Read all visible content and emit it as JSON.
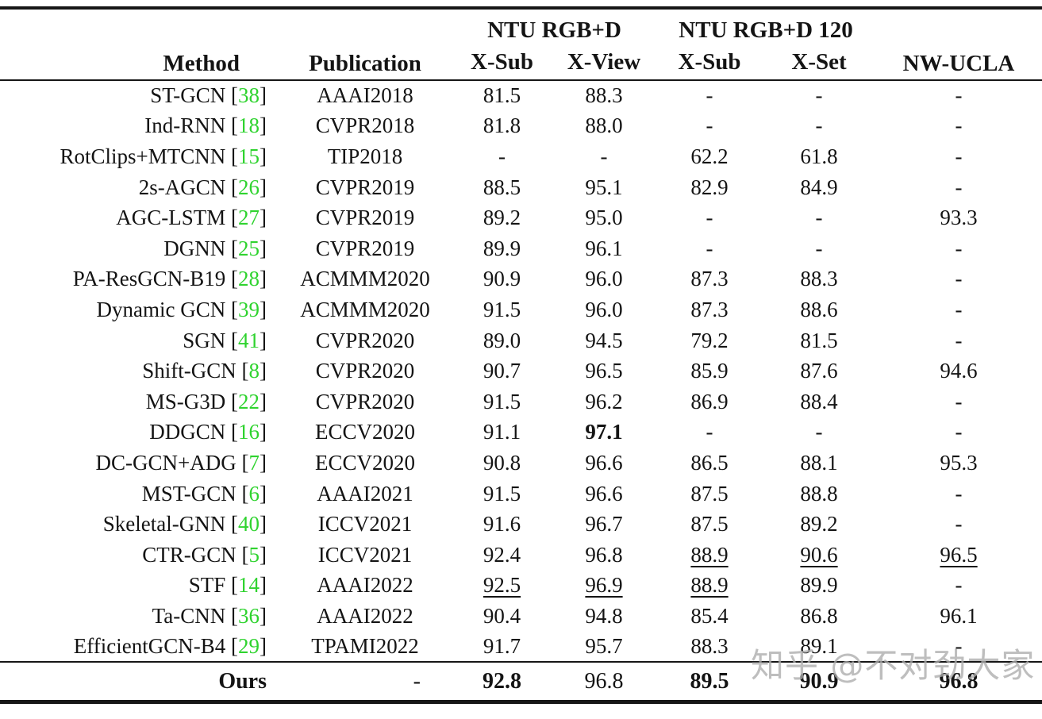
{
  "format": {
    "cite_open": " [",
    "cite_close": "]"
  },
  "colors": {
    "citation_green": "#2fd32f",
    "text": "#141414",
    "background": "#ffffff",
    "watermark_gray": "#acacac"
  },
  "watermark": {
    "text": "知乎 @不对劲大家"
  },
  "table": {
    "header": {
      "method": "Method",
      "publication": "Publication",
      "group1": "NTU RGB+D",
      "group2": "NTU RGB+D 120",
      "nw_ucla": "NW-UCLA",
      "subs": [
        "X-Sub",
        "X-View",
        "X-Sub",
        "X-Set"
      ]
    },
    "rows": [
      {
        "method": "ST-GCN",
        "cite": "38",
        "publication": "AAAI2018",
        "values": [
          "81.5",
          "88.3",
          "-",
          "-",
          "-"
        ],
        "bold": [],
        "underline": []
      },
      {
        "method": "Ind-RNN",
        "cite": "18",
        "publication": "CVPR2018",
        "values": [
          "81.8",
          "88.0",
          "-",
          "-",
          "-"
        ],
        "bold": [],
        "underline": []
      },
      {
        "method": "RotClips+MTCNN",
        "cite": "15",
        "publication": "TIP2018",
        "values": [
          "-",
          "-",
          "62.2",
          "61.8",
          "-"
        ],
        "bold": [],
        "underline": []
      },
      {
        "method": "2s-AGCN",
        "cite": "26",
        "publication": "CVPR2019",
        "values": [
          "88.5",
          "95.1",
          "82.9",
          "84.9",
          "-"
        ],
        "bold": [],
        "underline": []
      },
      {
        "method": "AGC-LSTM",
        "cite": "27",
        "publication": "CVPR2019",
        "values": [
          "89.2",
          "95.0",
          "-",
          "-",
          "93.3"
        ],
        "bold": [],
        "underline": []
      },
      {
        "method": "DGNN",
        "cite": "25",
        "publication": "CVPR2019",
        "values": [
          "89.9",
          "96.1",
          "-",
          "-",
          "-"
        ],
        "bold": [],
        "underline": []
      },
      {
        "method": "PA-ResGCN-B19",
        "cite": "28",
        "publication": "ACMMM2020",
        "values": [
          "90.9",
          "96.0",
          "87.3",
          "88.3",
          "-"
        ],
        "bold": [],
        "underline": []
      },
      {
        "method": "Dynamic GCN",
        "cite": "39",
        "publication": "ACMMM2020",
        "values": [
          "91.5",
          "96.0",
          "87.3",
          "88.6",
          "-"
        ],
        "bold": [],
        "underline": []
      },
      {
        "method": "SGN",
        "cite": "41",
        "publication": "CVPR2020",
        "values": [
          "89.0",
          "94.5",
          "79.2",
          "81.5",
          "-"
        ],
        "bold": [],
        "underline": []
      },
      {
        "method": "Shift-GCN",
        "cite": "8",
        "publication": "CVPR2020",
        "values": [
          "90.7",
          "96.5",
          "85.9",
          "87.6",
          "94.6"
        ],
        "bold": [],
        "underline": []
      },
      {
        "method": "MS-G3D",
        "cite": "22",
        "publication": "CVPR2020",
        "values": [
          "91.5",
          "96.2",
          "86.9",
          "88.4",
          "-"
        ],
        "bold": [],
        "underline": []
      },
      {
        "method": "DDGCN",
        "cite": "16",
        "publication": "ECCV2020",
        "values": [
          "91.1",
          "97.1",
          "-",
          "-",
          "-"
        ],
        "bold": [
          1
        ],
        "underline": []
      },
      {
        "method": "DC-GCN+ADG",
        "cite": "7",
        "publication": "ECCV2020",
        "values": [
          "90.8",
          "96.6",
          "86.5",
          "88.1",
          "95.3"
        ],
        "bold": [],
        "underline": []
      },
      {
        "method": "MST-GCN",
        "cite": "6",
        "publication": "AAAI2021",
        "values": [
          "91.5",
          "96.6",
          "87.5",
          "88.8",
          "-"
        ],
        "bold": [],
        "underline": []
      },
      {
        "method": "Skeletal-GNN",
        "cite": "40",
        "publication": "ICCV2021",
        "values": [
          "91.6",
          "96.7",
          "87.5",
          "89.2",
          "-"
        ],
        "bold": [],
        "underline": []
      },
      {
        "method": "CTR-GCN",
        "cite": "5",
        "publication": "ICCV2021",
        "values": [
          "92.4",
          "96.8",
          "88.9",
          "90.6",
          "96.5"
        ],
        "bold": [],
        "underline": [
          2,
          3,
          4
        ]
      },
      {
        "method": "STF",
        "cite": "14",
        "publication": "AAAI2022",
        "values": [
          "92.5",
          "96.9",
          "88.9",
          "89.9",
          "-"
        ],
        "bold": [],
        "underline": [
          0,
          1,
          2
        ]
      },
      {
        "method": "Ta-CNN",
        "cite": "36",
        "publication": "AAAI2022",
        "values": [
          "90.4",
          "94.8",
          "85.4",
          "86.8",
          "96.1"
        ],
        "bold": [],
        "underline": []
      },
      {
        "method": "EfficientGCN-B4",
        "cite": "29",
        "publication": "TPAMI2022",
        "values": [
          "91.7",
          "95.7",
          "88.3",
          "89.1",
          "-"
        ],
        "bold": [],
        "underline": []
      }
    ],
    "ours": {
      "method": "Ours",
      "method_bold": true,
      "publication": "-",
      "values": [
        "92.8",
        "96.8",
        "89.5",
        "90.9",
        "96.8"
      ],
      "bold": [
        0,
        2,
        3,
        4
      ],
      "underline": []
    }
  }
}
